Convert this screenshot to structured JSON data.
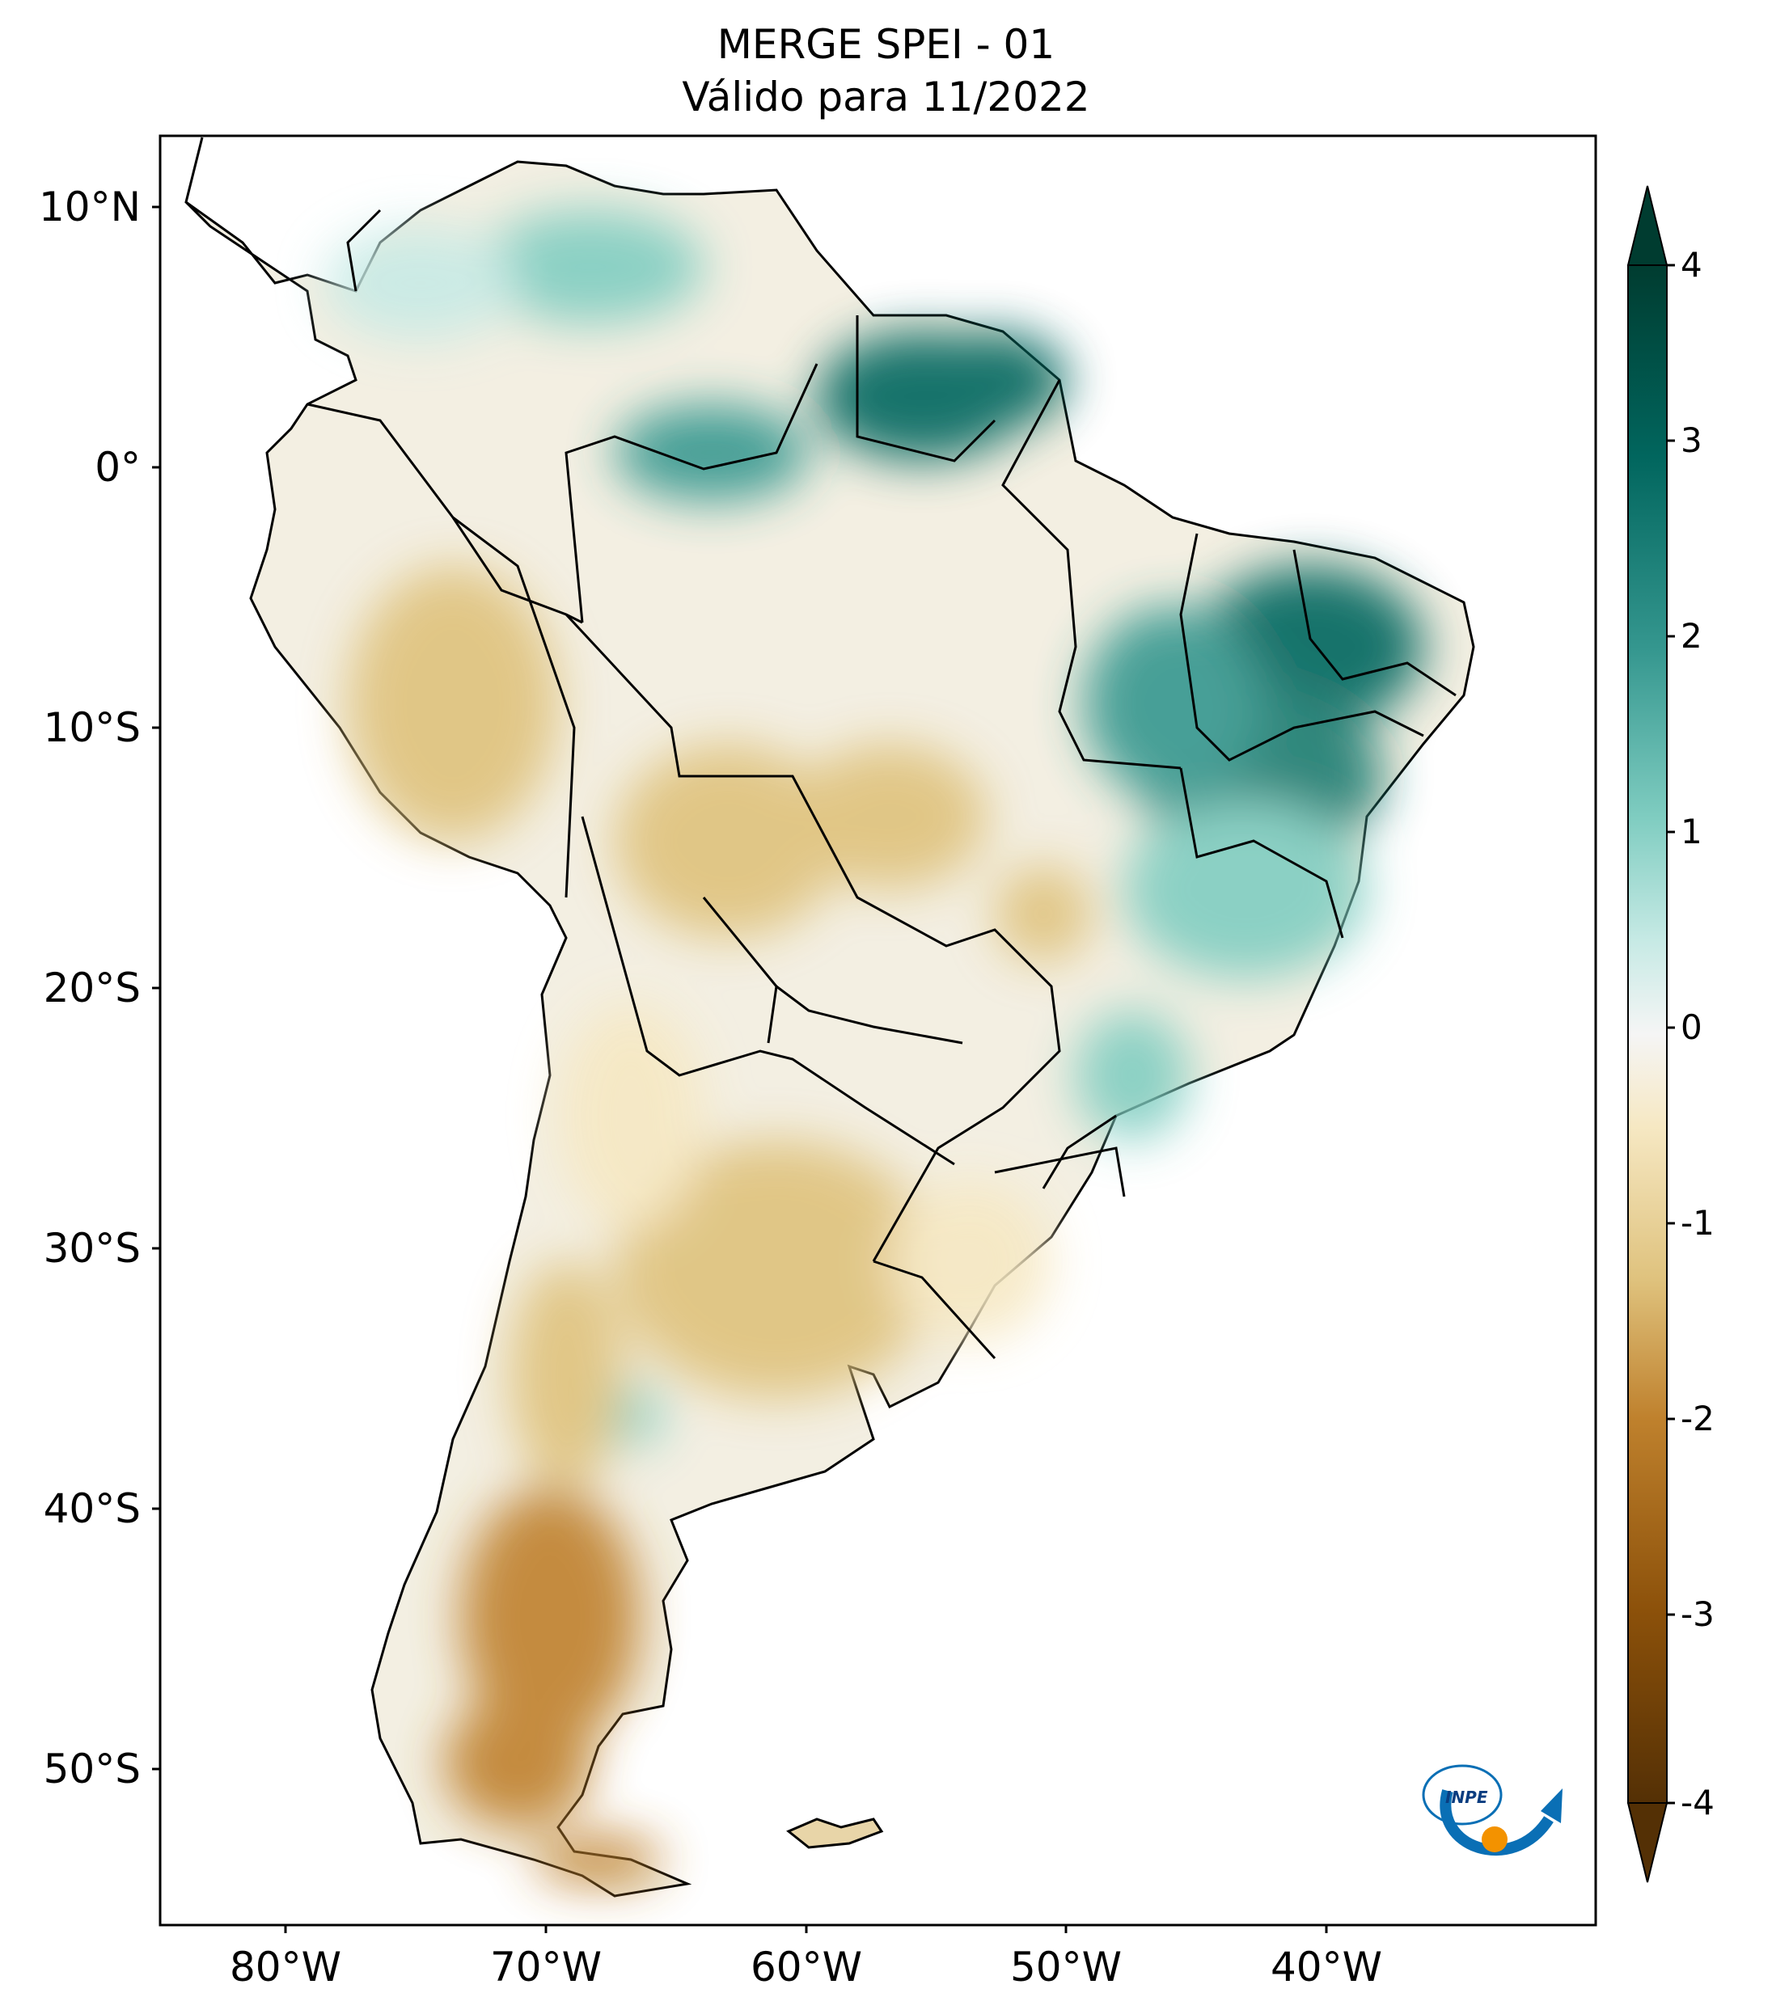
{
  "title": {
    "line1": "MERGE   SPEI - 01",
    "line2": "Válido para 11/2022"
  },
  "map": {
    "latitude_labels": [
      "10°N",
      "0°",
      "10°S",
      "20°S",
      "30°S",
      "40°S",
      "50°S"
    ],
    "longitude_labels": [
      "80°W",
      "70°W",
      "60°W",
      "50°W",
      "40°W"
    ]
  },
  "colorbar": {
    "ticks": [
      "4",
      "3",
      "2",
      "1",
      "0",
      "-1",
      "-2",
      "-3",
      "-4"
    ],
    "min": -4,
    "max": 4,
    "colors": {
      "wet_extreme": "#003c30",
      "wet_strong": "#01665e",
      "wet_moderate": "#35978f",
      "wet_mild": "#80cdc1",
      "wet_slight": "#c7eae5",
      "neutral": "#f5f5f5",
      "dry_slight": "#f6e8c3",
      "dry_mild": "#dfc27d",
      "dry_moderate": "#bf812d",
      "dry_strong": "#8c510a",
      "dry_extreme": "#543005"
    }
  },
  "logo": {
    "text": "INPE",
    "icon": "inpe-logo-icon"
  }
}
